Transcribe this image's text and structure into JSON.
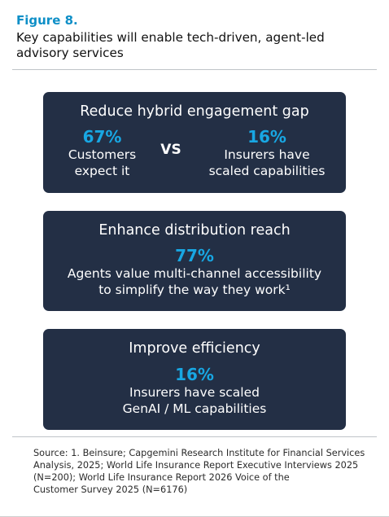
{
  "figure": {
    "label": "Figure 8.",
    "title_line1": "Key capabilities will enable tech-driven, agent-led",
    "title_line2": "advisory services"
  },
  "cards": [
    {
      "title": "Reduce hybrid engagement gap",
      "left": {
        "value": "67%",
        "desc_line1": "Customers",
        "desc_line2": "expect it"
      },
      "separator": "VS",
      "right": {
        "value": "16%",
        "desc_line1": "Insurers have",
        "desc_line2": "scaled capabilities"
      }
    },
    {
      "title": "Enhance distribution reach",
      "value": "77%",
      "desc_line1": "Agents value multi-channel accessibility",
      "desc_line2": "to simplify the way they work¹"
    },
    {
      "title": "Improve efficiency",
      "value": "16%",
      "desc_line1": "Insurers have scaled",
      "desc_line2": "GenAI / ML capabilities"
    }
  ],
  "source": {
    "line1": "Source: 1. Beinsure; Capgemini Research Institute for Financial Services",
    "line2": "Analysis, 2025; World Life Insurance Report Executive Interviews 2025",
    "line3": "(N=200); World Life Insurance Report 2026 Voice of the",
    "line4": "Customer Survey 2025 (N=6176)"
  },
  "colors": {
    "accent": "#18a7e3",
    "figure_label": "#0e8fc7",
    "card_background": "#232f45",
    "card_text": "#ffffff"
  }
}
